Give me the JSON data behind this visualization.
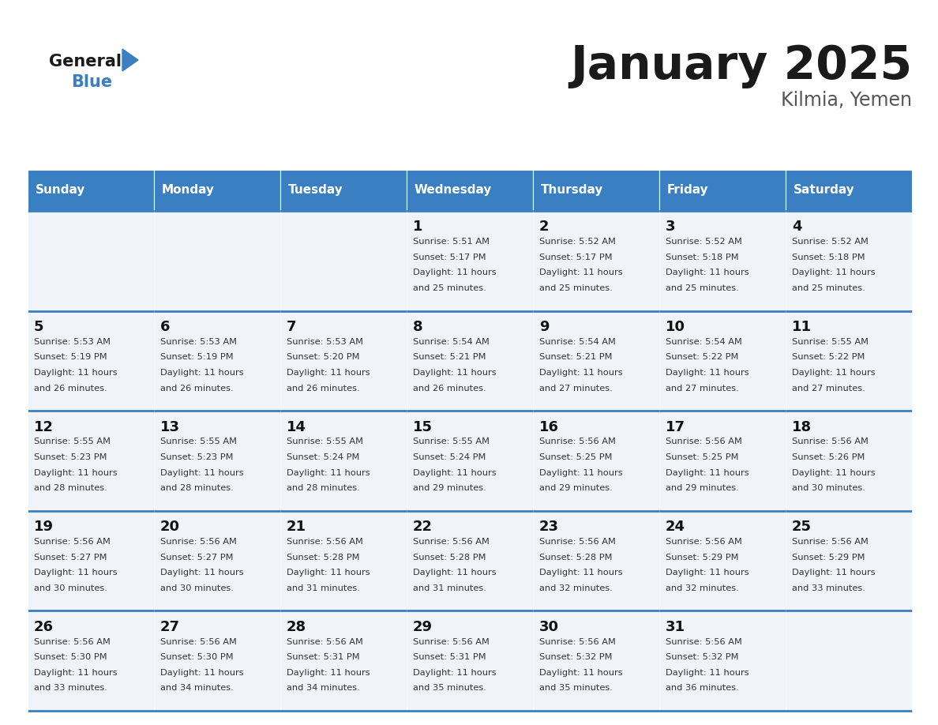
{
  "title": "January 2025",
  "subtitle": "Kilmia, Yemen",
  "header_color": "#3A7FC1",
  "header_text_color": "#FFFFFF",
  "cell_bg_color": "#F0F4F8",
  "border_color": "#3A7FC1",
  "title_color": "#1a1a1a",
  "subtitle_color": "#555555",
  "day_num_color": "#111111",
  "info_color": "#333333",
  "day_names": [
    "Sunday",
    "Monday",
    "Tuesday",
    "Wednesday",
    "Thursday",
    "Friday",
    "Saturday"
  ],
  "logo_general_color": "#1a1a1a",
  "logo_blue_color": "#3A7FC1",
  "logo_triangle_color": "#3A7FC1",
  "weeks": [
    [
      {
        "day": "",
        "sunrise": "",
        "sunset": "",
        "daylight_h": "",
        "daylight_m": ""
      },
      {
        "day": "",
        "sunrise": "",
        "sunset": "",
        "daylight_h": "",
        "daylight_m": ""
      },
      {
        "day": "",
        "sunrise": "",
        "sunset": "",
        "daylight_h": "",
        "daylight_m": ""
      },
      {
        "day": "1",
        "sunrise": "5:51 AM",
        "sunset": "5:17 PM",
        "daylight_h": "11 hours",
        "daylight_m": "25 minutes."
      },
      {
        "day": "2",
        "sunrise": "5:52 AM",
        "sunset": "5:17 PM",
        "daylight_h": "11 hours",
        "daylight_m": "25 minutes."
      },
      {
        "day": "3",
        "sunrise": "5:52 AM",
        "sunset": "5:18 PM",
        "daylight_h": "11 hours",
        "daylight_m": "25 minutes."
      },
      {
        "day": "4",
        "sunrise": "5:52 AM",
        "sunset": "5:18 PM",
        "daylight_h": "11 hours",
        "daylight_m": "25 minutes."
      }
    ],
    [
      {
        "day": "5",
        "sunrise": "5:53 AM",
        "sunset": "5:19 PM",
        "daylight_h": "11 hours",
        "daylight_m": "26 minutes."
      },
      {
        "day": "6",
        "sunrise": "5:53 AM",
        "sunset": "5:19 PM",
        "daylight_h": "11 hours",
        "daylight_m": "26 minutes."
      },
      {
        "day": "7",
        "sunrise": "5:53 AM",
        "sunset": "5:20 PM",
        "daylight_h": "11 hours",
        "daylight_m": "26 minutes."
      },
      {
        "day": "8",
        "sunrise": "5:54 AM",
        "sunset": "5:21 PM",
        "daylight_h": "11 hours",
        "daylight_m": "26 minutes."
      },
      {
        "day": "9",
        "sunrise": "5:54 AM",
        "sunset": "5:21 PM",
        "daylight_h": "11 hours",
        "daylight_m": "27 minutes."
      },
      {
        "day": "10",
        "sunrise": "5:54 AM",
        "sunset": "5:22 PM",
        "daylight_h": "11 hours",
        "daylight_m": "27 minutes."
      },
      {
        "day": "11",
        "sunrise": "5:55 AM",
        "sunset": "5:22 PM",
        "daylight_h": "11 hours",
        "daylight_m": "27 minutes."
      }
    ],
    [
      {
        "day": "12",
        "sunrise": "5:55 AM",
        "sunset": "5:23 PM",
        "daylight_h": "11 hours",
        "daylight_m": "28 minutes."
      },
      {
        "day": "13",
        "sunrise": "5:55 AM",
        "sunset": "5:23 PM",
        "daylight_h": "11 hours",
        "daylight_m": "28 minutes."
      },
      {
        "day": "14",
        "sunrise": "5:55 AM",
        "sunset": "5:24 PM",
        "daylight_h": "11 hours",
        "daylight_m": "28 minutes."
      },
      {
        "day": "15",
        "sunrise": "5:55 AM",
        "sunset": "5:24 PM",
        "daylight_h": "11 hours",
        "daylight_m": "29 minutes."
      },
      {
        "day": "16",
        "sunrise": "5:56 AM",
        "sunset": "5:25 PM",
        "daylight_h": "11 hours",
        "daylight_m": "29 minutes."
      },
      {
        "day": "17",
        "sunrise": "5:56 AM",
        "sunset": "5:25 PM",
        "daylight_h": "11 hours",
        "daylight_m": "29 minutes."
      },
      {
        "day": "18",
        "sunrise": "5:56 AM",
        "sunset": "5:26 PM",
        "daylight_h": "11 hours",
        "daylight_m": "30 minutes."
      }
    ],
    [
      {
        "day": "19",
        "sunrise": "5:56 AM",
        "sunset": "5:27 PM",
        "daylight_h": "11 hours",
        "daylight_m": "30 minutes."
      },
      {
        "day": "20",
        "sunrise": "5:56 AM",
        "sunset": "5:27 PM",
        "daylight_h": "11 hours",
        "daylight_m": "30 minutes."
      },
      {
        "day": "21",
        "sunrise": "5:56 AM",
        "sunset": "5:28 PM",
        "daylight_h": "11 hours",
        "daylight_m": "31 minutes."
      },
      {
        "day": "22",
        "sunrise": "5:56 AM",
        "sunset": "5:28 PM",
        "daylight_h": "11 hours",
        "daylight_m": "31 minutes."
      },
      {
        "day": "23",
        "sunrise": "5:56 AM",
        "sunset": "5:28 PM",
        "daylight_h": "11 hours",
        "daylight_m": "32 minutes."
      },
      {
        "day": "24",
        "sunrise": "5:56 AM",
        "sunset": "5:29 PM",
        "daylight_h": "11 hours",
        "daylight_m": "32 minutes."
      },
      {
        "day": "25",
        "sunrise": "5:56 AM",
        "sunset": "5:29 PM",
        "daylight_h": "11 hours",
        "daylight_m": "33 minutes."
      }
    ],
    [
      {
        "day": "26",
        "sunrise": "5:56 AM",
        "sunset": "5:30 PM",
        "daylight_h": "11 hours",
        "daylight_m": "33 minutes."
      },
      {
        "day": "27",
        "sunrise": "5:56 AM",
        "sunset": "5:30 PM",
        "daylight_h": "11 hours",
        "daylight_m": "34 minutes."
      },
      {
        "day": "28",
        "sunrise": "5:56 AM",
        "sunset": "5:31 PM",
        "daylight_h": "11 hours",
        "daylight_m": "34 minutes."
      },
      {
        "day": "29",
        "sunrise": "5:56 AM",
        "sunset": "5:31 PM",
        "daylight_h": "11 hours",
        "daylight_m": "35 minutes."
      },
      {
        "day": "30",
        "sunrise": "5:56 AM",
        "sunset": "5:32 PM",
        "daylight_h": "11 hours",
        "daylight_m": "35 minutes."
      },
      {
        "day": "31",
        "sunrise": "5:56 AM",
        "sunset": "5:32 PM",
        "daylight_h": "11 hours",
        "daylight_m": "36 minutes."
      },
      {
        "day": "",
        "sunrise": "",
        "sunset": "",
        "daylight_h": "",
        "daylight_m": ""
      }
    ]
  ]
}
